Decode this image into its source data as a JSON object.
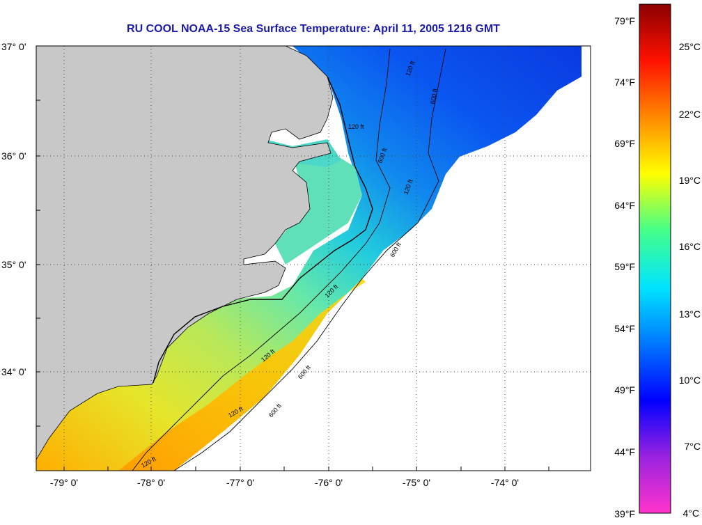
{
  "title": "RU COOL  NOAA-15  Sea Surface Temperature:  April 11, 2005 1216 GMT",
  "map": {
    "lat_labels": [
      "37° 0'",
      "36° 0'",
      "35° 0'",
      "34° 0'"
    ],
    "lon_labels": [
      "-79° 0'",
      "-78° 0'",
      "-77° 0'",
      "-76° 0'",
      "-75° 0'",
      "-74° 0'"
    ],
    "contour_labels": [
      "120 ft",
      "600 ft",
      "120 ft",
      "600 ft",
      "120 ft",
      "600 ft",
      "120 ft",
      "120 ft",
      "600 ft",
      "120 ft",
      "600 ft",
      "120 ft"
    ],
    "land_color": "#c8c8c8",
    "grid": "dotted"
  },
  "colorbar": {
    "fahrenheit_labels": [
      "79°F",
      "74°F",
      "69°F",
      "64°F",
      "59°F",
      "54°F",
      "49°F",
      "44°F",
      "39°F"
    ],
    "celsius_labels": [
      "25°C",
      "22°C",
      "19°C",
      "16°C",
      "13°C",
      "10°C",
      "7°C",
      "4°C"
    ],
    "colors": [
      "#ff33cc",
      "#9a22e0",
      "#0000ff",
      "#0077ff",
      "#00e5ff",
      "#44ff88",
      "#ffff00",
      "#ff8800",
      "#ff1100",
      "#8b0000"
    ]
  }
}
